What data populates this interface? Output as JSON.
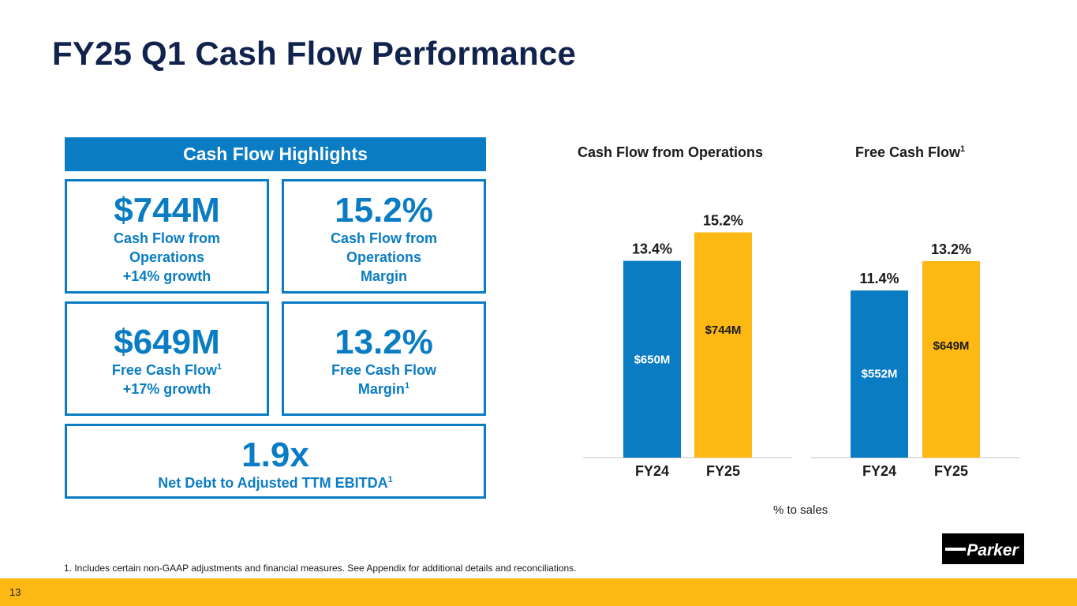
{
  "title": "FY25 Q1 Cash Flow Performance",
  "highlights": {
    "header": "Cash Flow Highlights",
    "cfo": {
      "value": "$744M",
      "line1": "Cash Flow from",
      "line2": "Operations",
      "line3": "+14% growth"
    },
    "cfo_margin": {
      "value": "15.2%",
      "line1": "Cash Flow from",
      "line2": "Operations",
      "line3": "Margin"
    },
    "fcf": {
      "value": "$649M",
      "line1": "Free Cash Flow",
      "line1_sup": "1",
      "line2": "+17% growth"
    },
    "fcf_margin": {
      "value": "13.2%",
      "line1": "Free Cash Flow",
      "line2": "Margin",
      "line2_sup": "1"
    },
    "debt": {
      "value": "1.9x",
      "line1": "Net Debt to Adjusted TTM EBITDA",
      "line1_sup": "1"
    }
  },
  "pct_note": "% to sales",
  "footnote": "1. Includes certain non-GAAP adjustments and financial measures. See Appendix for additional details and reconciliations.",
  "page_number": "13",
  "logo_text": "Parker",
  "colors": {
    "blue": "#0a7cc3",
    "gold": "#fdb813",
    "navy": "#11224d"
  },
  "chart_data": [
    {
      "type": "bar",
      "title": "Cash Flow from Operations",
      "title_sup": "",
      "categories": [
        "FY24",
        "FY25"
      ],
      "values": [
        650,
        744
      ],
      "value_labels": [
        "$650M",
        "$744M"
      ],
      "pct_labels": [
        "13.4%",
        "15.2%"
      ],
      "unit": "$M",
      "colors": [
        "#0a7cc3",
        "#fdb813"
      ],
      "ylim": [
        0,
        800
      ]
    },
    {
      "type": "bar",
      "title": "Free Cash Flow",
      "title_sup": "1",
      "categories": [
        "FY24",
        "FY25"
      ],
      "values": [
        552,
        649
      ],
      "value_labels": [
        "$552M",
        "$649M"
      ],
      "pct_labels": [
        "11.4%",
        "13.2%"
      ],
      "unit": "$M",
      "colors": [
        "#0a7cc3",
        "#fdb813"
      ],
      "ylim": [
        0,
        800
      ]
    }
  ]
}
